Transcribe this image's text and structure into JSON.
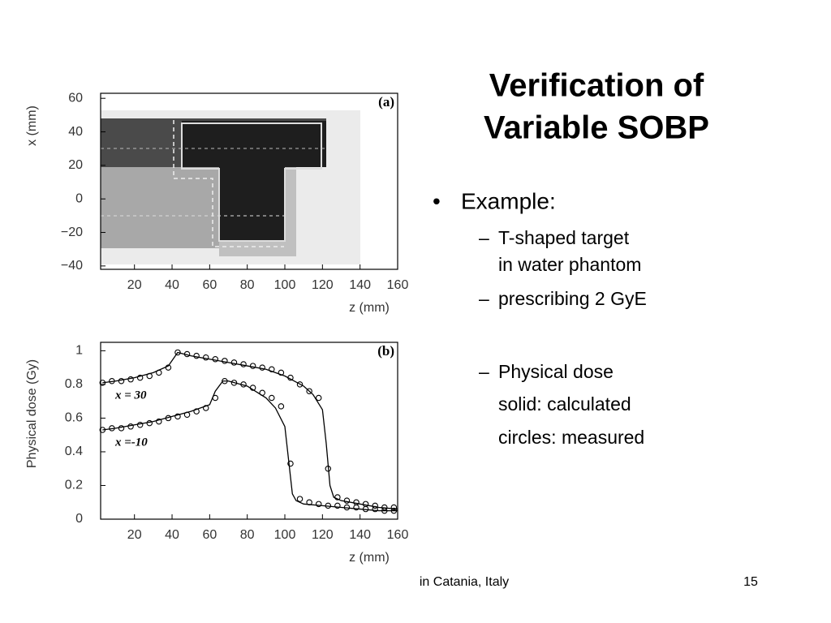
{
  "slide": {
    "title": [
      "Verification of",
      "Variable SOBP"
    ],
    "bullets": {
      "main": "Example:",
      "sub": [
        [
          "T-shaped target",
          "in water phantom"
        ],
        [
          "prescribing 2 GyE"
        ],
        [
          "Physical dose",
          "solid: calculated",
          "circles: measured"
        ]
      ]
    },
    "footer": "in Catania, Italy",
    "page": "15"
  },
  "chart_data": [
    {
      "type": "map",
      "panel": "(a)",
      "x_label": "z (mm)",
      "y_label": "x (mm)",
      "xlim": [
        2,
        160
      ],
      "xticks": [
        20,
        40,
        60,
        80,
        100,
        120,
        140,
        160
      ],
      "ylim": [
        -42,
        63
      ],
      "yticks": [
        {
          "value": -40,
          "label": "−40"
        },
        {
          "value": -20,
          "label": "−20"
        },
        0,
        20,
        40,
        60
      ]
    },
    {
      "type": "line",
      "panel": "(b)",
      "x_label": "z (mm)",
      "y_label": "Physical dose (Gy)",
      "xlim": [
        2,
        160
      ],
      "xticks": [
        20,
        40,
        60,
        80,
        100,
        120,
        140,
        160
      ],
      "ylim": [
        0,
        1.05
      ],
      "yticks": [
        0,
        0.2,
        0.4,
        0.6,
        0.8,
        1
      ],
      "annotations": [
        "x = 30",
        "x =-10"
      ],
      "series": [
        {
          "name": "calculated",
          "style": "line",
          "color": "#000000",
          "x": [
            3,
            10,
            20,
            30,
            38,
            43,
            50,
            60,
            70,
            80,
            90,
            100,
            110,
            115,
            120,
            122,
            124,
            126,
            130,
            140,
            150,
            160
          ],
          "values": [
            0.81,
            0.82,
            0.84,
            0.87,
            0.91,
            0.99,
            0.97,
            0.95,
            0.93,
            0.91,
            0.89,
            0.85,
            0.79,
            0.74,
            0.65,
            0.45,
            0.2,
            0.13,
            0.11,
            0.09,
            0.07,
            0.06
          ]
        },
        {
          "name": "calculated",
          "style": "line",
          "color": "#000000",
          "x": [
            3,
            10,
            20,
            30,
            40,
            50,
            60,
            63,
            67,
            70,
            80,
            90,
            95,
            100,
            102,
            104,
            106,
            110,
            120,
            130,
            140,
            150,
            160
          ],
          "values": [
            0.53,
            0.54,
            0.56,
            0.58,
            0.61,
            0.64,
            0.68,
            0.76,
            0.82,
            0.82,
            0.79,
            0.72,
            0.66,
            0.55,
            0.35,
            0.15,
            0.11,
            0.09,
            0.08,
            0.07,
            0.06,
            0.05,
            0.05
          ]
        },
        {
          "name": "measured",
          "style": "circle",
          "color": "#000000",
          "x": [
            3,
            8,
            13,
            18,
            23,
            28,
            33,
            38,
            43,
            48,
            53,
            58,
            63,
            68,
            73,
            78,
            83,
            88,
            93,
            98,
            103,
            108,
            113,
            118,
            123,
            128,
            133,
            138,
            143,
            148,
            153,
            158
          ],
          "values": [
            0.81,
            0.82,
            0.82,
            0.83,
            0.84,
            0.85,
            0.87,
            0.9,
            0.99,
            0.98,
            0.97,
            0.96,
            0.95,
            0.94,
            0.93,
            0.92,
            0.91,
            0.9,
            0.89,
            0.87,
            0.84,
            0.8,
            0.76,
            0.72,
            0.3,
            0.13,
            0.11,
            0.1,
            0.09,
            0.08,
            0.07,
            0.07
          ]
        },
        {
          "name": "measured",
          "style": "circle",
          "color": "#000000",
          "x": [
            3,
            8,
            13,
            18,
            23,
            28,
            33,
            38,
            43,
            48,
            53,
            58,
            63,
            68,
            73,
            78,
            83,
            88,
            93,
            98,
            103,
            108,
            113,
            118,
            123,
            128,
            133,
            138,
            143,
            148,
            153,
            158
          ],
          "values": [
            0.53,
            0.54,
            0.54,
            0.55,
            0.56,
            0.57,
            0.58,
            0.6,
            0.61,
            0.62,
            0.64,
            0.66,
            0.72,
            0.82,
            0.81,
            0.8,
            0.78,
            0.75,
            0.72,
            0.67,
            0.33,
            0.12,
            0.1,
            0.09,
            0.08,
            0.08,
            0.07,
            0.07,
            0.06,
            0.06,
            0.05,
            0.05
          ]
        }
      ]
    }
  ]
}
